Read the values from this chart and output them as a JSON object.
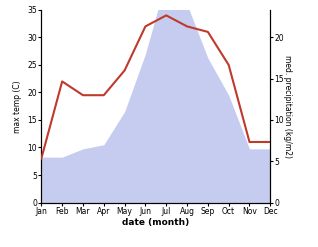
{
  "months": [
    "Jan",
    "Feb",
    "Mar",
    "Apr",
    "May",
    "Jun",
    "Jul",
    "Aug",
    "Sep",
    "Oct",
    "Nov",
    "Dec"
  ],
  "temperature": [
    8.0,
    22.0,
    19.5,
    19.5,
    24.0,
    32.0,
    34.0,
    32.0,
    31.0,
    25.0,
    11.0,
    11.0
  ],
  "precipitation": [
    5.5,
    5.5,
    6.5,
    7.0,
    11.0,
    18.0,
    27.0,
    24.0,
    17.5,
    13.0,
    6.5,
    6.5
  ],
  "temp_color": "#c0392b",
  "precip_fill_color": "#c5ccf0",
  "temp_ylim": [
    0,
    35
  ],
  "precip_ylim": [
    0,
    23.33
  ],
  "ylabel_left": "max temp (C)",
  "ylabel_right": "med. precipitation (kg/m2)",
  "xlabel": "date (month)",
  "right_ticks": [
    0,
    5,
    10,
    15,
    20
  ],
  "left_ticks": [
    0,
    5,
    10,
    15,
    20,
    25,
    30,
    35
  ],
  "background_color": "#ffffff"
}
